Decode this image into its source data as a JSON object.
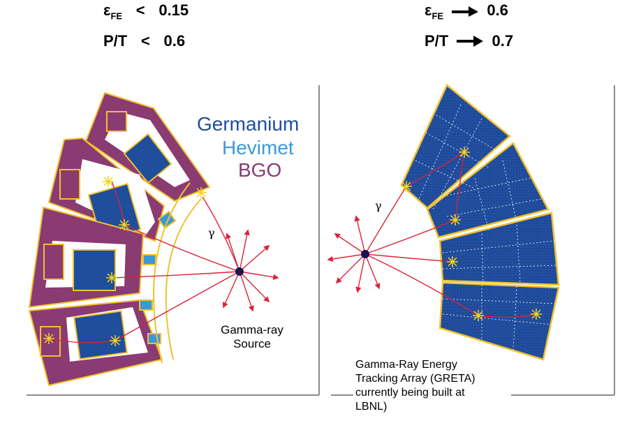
{
  "left_metrics": {
    "efficiency": {
      "symbol": "ε",
      "subscript": "FE",
      "operator": "<",
      "value": "0.15"
    },
    "peak_to_total": {
      "symbol": "P/T",
      "operator": "<",
      "value": "0.6"
    }
  },
  "right_metrics": {
    "efficiency": {
      "symbol": "ε",
      "subscript": "FE",
      "value": "0.6"
    },
    "peak_to_total": {
      "symbol": "P/T",
      "value": "0.7"
    }
  },
  "legend": {
    "germanium": {
      "label": "Germanium",
      "color": "#1f4e9c"
    },
    "hevimet": {
      "label": "Hevimet",
      "color": "#3a9ad9"
    },
    "bgo": {
      "label": "BGO",
      "color": "#8a3b72"
    }
  },
  "left_panel": {
    "gamma_symbol": "γ",
    "source_label_line1": "Gamma-ray",
    "source_label_line2": "Source"
  },
  "right_panel": {
    "gamma_symbol": "γ",
    "caption_lines": [
      "Gamma-Ray Energy",
      "Tracking Array (GRETA)",
      "currently being built at",
      "LBNL)"
    ]
  },
  "colors": {
    "crystal_outline": "#f2c12e",
    "ray": "#d8243a",
    "source_dot": "#1a1550",
    "panel_line": "#8c8c8c",
    "greta_fill": "#1f4a9a",
    "interaction_mark": "#f2d51b"
  }
}
